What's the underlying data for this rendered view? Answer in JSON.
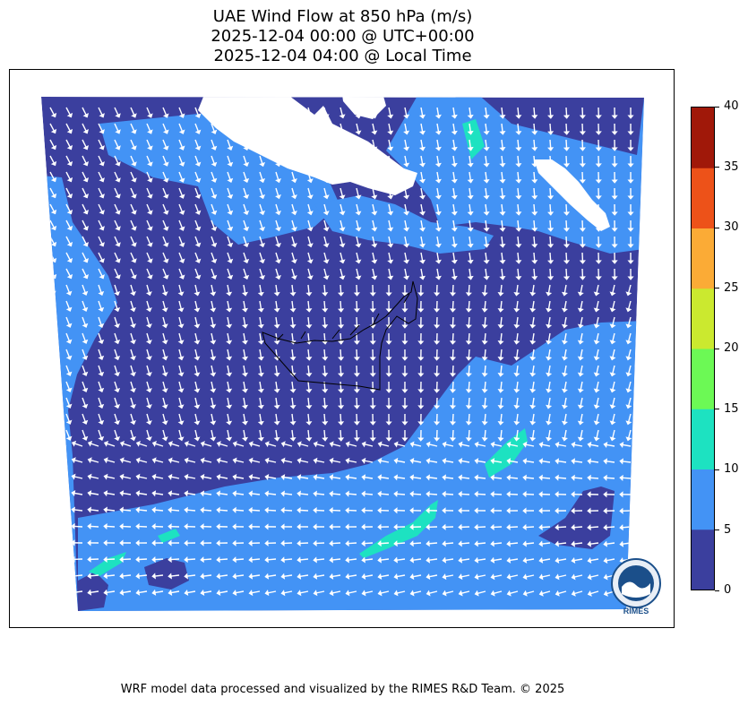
{
  "title_lines": [
    "UAE Wind Flow at 850 hPa (m/s)",
    "2025-12-04 00:00 @ UTC+00:00",
    "2025-12-04 04:00 @ Local Time"
  ],
  "colorbar": {
    "ticks": [
      "0",
      "5",
      "10",
      "15",
      "20",
      "25",
      "30",
      "35",
      "40"
    ],
    "colors": [
      "#3b3f9e",
      "#4393f5",
      "#1de2c1",
      "#6cf955",
      "#cbe92f",
      "#fbab36",
      "#ed5219",
      "#a01809"
    ]
  },
  "map_colors": {
    "background": "#3b3f9e",
    "wind_5_10": "#4393f5",
    "wind_10_15": "#1de2c1",
    "arrows": "#ffffff",
    "border": "#000000"
  },
  "logo": {
    "text": "RIMES"
  },
  "credit": "WRF model data processed and visualized by the RIMES R&D Team. © 2025"
}
